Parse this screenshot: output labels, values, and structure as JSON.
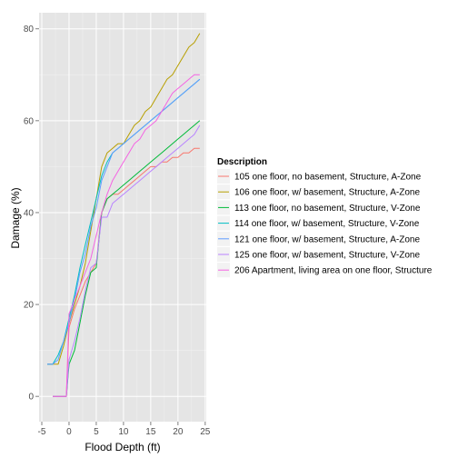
{
  "chart_data": {
    "type": "line",
    "title": "",
    "xlabel": "Flood Depth (ft)",
    "ylabel": "Damage (%)",
    "xlim": [
      -5.5,
      25.2
    ],
    "ylim": [
      -5.5,
      83.5
    ],
    "xticks": [
      -5,
      0,
      5,
      10,
      15,
      20,
      25
    ],
    "yticks": [
      0,
      20,
      40,
      60,
      80
    ],
    "grid": true,
    "legend_position": "right",
    "legend_title": "Description",
    "series": [
      {
        "name": "105 one floor, no basement, Structure, A-Zone",
        "color": "#F8766D",
        "x": [
          -3,
          -2,
          -1,
          -0.5,
          0,
          1,
          2,
          3,
          4,
          5,
          6,
          7,
          8,
          9,
          10,
          11,
          12,
          13,
          14,
          15,
          16,
          17,
          18,
          19,
          20,
          21,
          22,
          23,
          24
        ],
        "y": [
          0,
          0,
          0,
          0,
          15,
          19,
          22,
          25,
          27,
          29,
          40,
          43,
          44,
          44,
          45,
          46,
          47,
          48,
          49,
          50,
          50,
          51,
          51,
          52,
          52,
          53,
          53,
          54,
          54
        ]
      },
      {
        "name": "106 one floor, w/ basement, Structure, A-Zone",
        "color": "#B79F00",
        "x": [
          -4,
          -3,
          -2,
          -1,
          0,
          1,
          2,
          3,
          4,
          5,
          6,
          7,
          8,
          9,
          10,
          11,
          12,
          13,
          14,
          15,
          16,
          17,
          18,
          19,
          20,
          21,
          22,
          23,
          24
        ],
        "y": [
          7,
          7,
          7,
          11,
          16,
          20,
          24,
          29,
          36,
          43,
          50,
          53,
          54,
          55,
          55,
          57,
          59,
          60,
          62,
          63,
          65,
          67,
          69,
          70,
          72,
          74,
          76,
          77,
          79
        ]
      },
      {
        "name": "113 one floor, no basement, Structure, V-Zone",
        "color": "#00BA38",
        "x": [
          -3,
          -2,
          -1,
          -0.5,
          0,
          1,
          2,
          3,
          4,
          5,
          6,
          7,
          8,
          9,
          10,
          11,
          12,
          13,
          14,
          15,
          16,
          17,
          18,
          19,
          20,
          21,
          22,
          23,
          24
        ],
        "y": [
          0,
          0,
          0,
          0,
          7,
          10,
          16,
          22,
          27,
          28,
          40,
          43,
          44,
          45,
          46,
          47,
          48,
          49,
          50,
          51,
          52,
          53,
          54,
          55,
          56,
          57,
          58,
          59,
          60
        ]
      },
      {
        "name": "114 one floor, w/ basement, Structure, V-Zone",
        "color": "#00BFC4",
        "x": [
          -4,
          -3,
          -2,
          -1,
          0,
          1,
          2,
          3,
          4,
          5,
          6,
          7,
          8,
          9,
          10,
          11,
          12,
          13,
          14,
          15,
          16,
          17,
          18,
          19,
          20,
          21,
          22,
          23,
          24
        ],
        "y": [
          7,
          7,
          9,
          12,
          17,
          22,
          28,
          33,
          38,
          43,
          48,
          51,
          53,
          54,
          55,
          56,
          57,
          58,
          59,
          60,
          61,
          62,
          63,
          64,
          65,
          66,
          67,
          68,
          69
        ]
      },
      {
        "name": "121 one floor, w/ basement, Structure, A-Zone",
        "color": "#619CFF",
        "x": [
          -4,
          -3,
          -2,
          -1,
          0,
          1,
          2,
          3,
          4,
          5,
          6,
          7,
          8,
          9,
          10,
          11,
          12,
          13,
          14,
          15,
          16,
          17,
          18,
          19,
          20,
          21,
          22,
          23,
          24
        ],
        "y": [
          7,
          7,
          8,
          12,
          16,
          21,
          27,
          31,
          37,
          41,
          47,
          50,
          53,
          54,
          55,
          56,
          57,
          58,
          59,
          60,
          61,
          62,
          63,
          64,
          65,
          66,
          67,
          68,
          69
        ]
      },
      {
        "name": "125 one floor, w/ basement, Structure, V-Zone",
        "color": "#B983FF",
        "x": [
          -3,
          -2,
          -1,
          -0.5,
          0,
          1,
          2,
          3,
          4,
          5,
          6,
          7,
          8,
          9,
          10,
          11,
          12,
          13,
          14,
          15,
          16,
          17,
          18,
          19,
          20,
          21,
          22,
          23,
          24
        ],
        "y": [
          0,
          0,
          0,
          0,
          8,
          12,
          17,
          23,
          28,
          29,
          39,
          39,
          42,
          43,
          44,
          45,
          46,
          47,
          48,
          49,
          50,
          51,
          52,
          53,
          54,
          55,
          56,
          57,
          59
        ]
      },
      {
        "name": "206 Apartment, living area on one floor, Structure",
        "color": "#F564E3",
        "x": [
          -3,
          -2,
          -1,
          -0.5,
          0,
          1,
          2,
          3,
          4,
          5,
          6,
          7,
          8,
          9,
          10,
          11,
          12,
          13,
          14,
          15,
          16,
          17,
          18,
          19,
          20,
          21,
          22,
          23,
          24
        ],
        "y": [
          0,
          0,
          0,
          0,
          18,
          21,
          24,
          27,
          30,
          35,
          40,
          44,
          47,
          49,
          51,
          53,
          55,
          56,
          58,
          59,
          60,
          62,
          64,
          66,
          67,
          68,
          69,
          70,
          70
        ]
      }
    ]
  }
}
